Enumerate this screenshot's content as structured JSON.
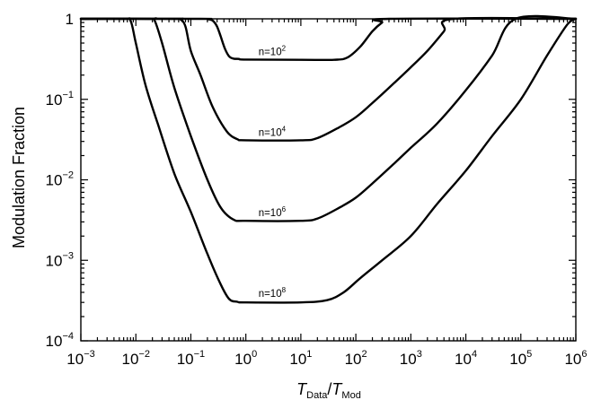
{
  "chart_data": {
    "type": "line",
    "xlabel": {
      "base": "T",
      "sub1": "Data",
      "sep": "/",
      "base2": "T",
      "sub2": "Mod"
    },
    "ylabel": "Modulation Fraction",
    "x_scale": "log",
    "y_scale": "log",
    "xlim": [
      0.001,
      1000000
    ],
    "ylim": [
      0.0001,
      1
    ],
    "x_ticks": [
      {
        "base": "10",
        "exp": "−3",
        "value": 0.001
      },
      {
        "base": "10",
        "exp": "−2",
        "value": 0.01
      },
      {
        "base": "10",
        "exp": "−1",
        "value": 0.1
      },
      {
        "base": "10",
        "exp": "0",
        "value": 1
      },
      {
        "base": "10",
        "exp": "1",
        "value": 10
      },
      {
        "base": "10",
        "exp": "2",
        "value": 100
      },
      {
        "base": "10",
        "exp": "3",
        "value": 1000
      },
      {
        "base": "10",
        "exp": "4",
        "value": 10000
      },
      {
        "base": "10",
        "exp": "5",
        "value": 100000
      },
      {
        "base": "10",
        "exp": "6",
        "value": 1000000
      }
    ],
    "y_ticks": [
      {
        "base": "1",
        "exp": "",
        "value": 1
      },
      {
        "base": "10",
        "exp": "−1",
        "value": 0.1
      },
      {
        "base": "10",
        "exp": "−2",
        "value": 0.01
      },
      {
        "base": "10",
        "exp": "−3",
        "value": 0.001
      },
      {
        "base": "10",
        "exp": "−4",
        "value": 0.0001
      }
    ],
    "grid": false,
    "legend": "none",
    "series": [
      {
        "label": {
          "base": "n=10",
          "exp": "2"
        },
        "label_at": [
          3.0,
          0.31
        ],
        "points": [
          [
            0.001,
            1
          ],
          [
            0.15,
            1
          ],
          [
            0.2,
            0.99
          ],
          [
            0.25,
            0.95
          ],
          [
            0.3,
            0.8
          ],
          [
            0.35,
            0.6
          ],
          [
            0.42,
            0.42
          ],
          [
            0.5,
            0.34
          ],
          [
            0.6,
            0.32
          ],
          [
            0.75,
            0.318
          ],
          [
            1.0,
            0.312
          ],
          [
            10,
            0.31
          ],
          [
            40,
            0.31
          ],
          [
            70,
            0.33
          ],
          [
            120,
            0.45
          ],
          [
            200,
            0.7
          ],
          [
            300,
            0.9
          ],
          [
            400,
            1
          ],
          [
            1000000,
            1
          ]
        ]
      },
      {
        "label": {
          "base": "n=10",
          "exp": "4"
        },
        "label_at": [
          3.0,
          0.031
        ],
        "points": [
          [
            0.001,
            1
          ],
          [
            0.05,
            1
          ],
          [
            0.065,
            0.98
          ],
          [
            0.08,
            0.8
          ],
          [
            0.1,
            0.4
          ],
          [
            0.15,
            0.2
          ],
          [
            0.25,
            0.08
          ],
          [
            0.45,
            0.04
          ],
          [
            0.7,
            0.032
          ],
          [
            1.0,
            0.031
          ],
          [
            10,
            0.031
          ],
          [
            20,
            0.033
          ],
          [
            50,
            0.045
          ],
          [
            100,
            0.06
          ],
          [
            200,
            0.09
          ],
          [
            500,
            0.16
          ],
          [
            1000,
            0.25
          ],
          [
            2000,
            0.4
          ],
          [
            4000,
            0.7
          ],
          [
            6000,
            1
          ],
          [
            1000000,
            1
          ]
        ]
      },
      {
        "label": {
          "base": "n=10",
          "exp": "6"
        },
        "label_at": [
          3.0,
          0.0031
        ],
        "points": [
          [
            0.001,
            1
          ],
          [
            0.018,
            1
          ],
          [
            0.022,
            0.95
          ],
          [
            0.03,
            0.5
          ],
          [
            0.05,
            0.14
          ],
          [
            0.1,
            0.035
          ],
          [
            0.2,
            0.01
          ],
          [
            0.35,
            0.0045
          ],
          [
            0.6,
            0.0032
          ],
          [
            1.0,
            0.0031
          ],
          [
            10,
            0.0031
          ],
          [
            20,
            0.0033
          ],
          [
            50,
            0.0045
          ],
          [
            100,
            0.006
          ],
          [
            200,
            0.009
          ],
          [
            500,
            0.016
          ],
          [
            1000,
            0.025
          ],
          [
            3000,
            0.05
          ],
          [
            10000,
            0.13
          ],
          [
            30000,
            0.35
          ],
          [
            80000,
            1
          ],
          [
            1000000,
            1
          ]
        ]
      },
      {
        "label": {
          "base": "n=10",
          "exp": "8"
        },
        "label_at": [
          3.0,
          0.00031
        ],
        "points": [
          [
            0.001,
            1
          ],
          [
            0.006,
            1
          ],
          [
            0.008,
            0.95
          ],
          [
            0.01,
            0.5
          ],
          [
            0.015,
            0.15
          ],
          [
            0.025,
            0.05
          ],
          [
            0.05,
            0.012
          ],
          [
            0.1,
            0.004
          ],
          [
            0.2,
            0.0012
          ],
          [
            0.35,
            0.0005
          ],
          [
            0.5,
            0.00033
          ],
          [
            0.7,
            0.000305
          ],
          [
            1.0,
            0.0003
          ],
          [
            10,
            0.0003
          ],
          [
            30,
            0.00032
          ],
          [
            60,
            0.0004
          ],
          [
            120,
            0.0006
          ],
          [
            300,
            0.001
          ],
          [
            1000,
            0.002
          ],
          [
            3000,
            0.005
          ],
          [
            10000,
            0.013
          ],
          [
            30000,
            0.035
          ],
          [
            100000,
            0.1
          ],
          [
            300000,
            0.35
          ],
          [
            700000,
            0.85
          ],
          [
            1000000,
            1
          ]
        ]
      }
    ]
  }
}
